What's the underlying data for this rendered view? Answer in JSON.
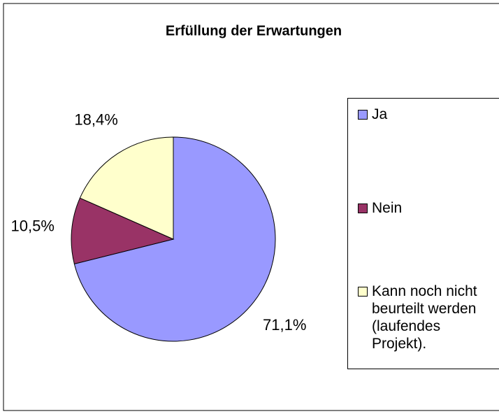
{
  "chart_data": {
    "type": "pie",
    "title": "Erfüllung der Erwartungen",
    "categories": [
      "Ja",
      "Nein",
      "Kann noch nicht beurteilt werden (laufendes Projekt)."
    ],
    "values": [
      71.1,
      10.5,
      18.4
    ],
    "value_labels": [
      "71,1%",
      "10,5%",
      "18,4%"
    ],
    "colors": [
      "#9999ff",
      "#993366",
      "#ffffcc"
    ],
    "legend": "right"
  }
}
